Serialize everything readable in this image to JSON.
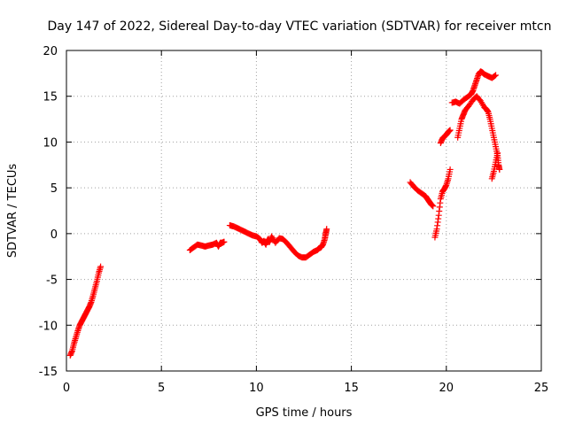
{
  "chart_data": {
    "type": "scatter",
    "title": "Day 147 of 2022, Sidereal Day-to-day VTEC variation (SDTVAR) for receiver mtcn",
    "xlabel": "GPS time / hours",
    "ylabel": "SDTVAR / TECUs",
    "xlim": [
      0,
      25
    ],
    "ylim": [
      -15,
      20
    ],
    "xticks": [
      0,
      5,
      10,
      15,
      20,
      25
    ],
    "yticks": [
      -15,
      -10,
      -5,
      0,
      5,
      10,
      15,
      20
    ],
    "xtick_labels": [
      "0",
      "5",
      "10",
      "15",
      "20",
      "25"
    ],
    "ytick_labels": [
      "-15",
      "-10",
      "-5",
      "0",
      "5",
      "10",
      "15",
      "20"
    ],
    "grid": true,
    "marker": "plus",
    "color": "#ff0000",
    "series": [
      {
        "name": "SDTVAR",
        "segments": [
          [
            [
              0.2,
              -13.3
            ],
            [
              0.3,
              -12.8
            ],
            [
              0.4,
              -12.0
            ],
            [
              0.5,
              -11.3
            ],
            [
              0.6,
              -10.6
            ],
            [
              0.7,
              -10.0
            ],
            [
              0.8,
              -9.6
            ],
            [
              0.9,
              -9.2
            ],
            [
              1.0,
              -8.8
            ],
            [
              1.1,
              -8.4
            ],
            [
              1.2,
              -8.0
            ],
            [
              1.3,
              -7.5
            ],
            [
              1.4,
              -6.8
            ],
            [
              1.5,
              -6.0
            ],
            [
              1.6,
              -5.2
            ],
            [
              1.7,
              -4.3
            ],
            [
              1.8,
              -3.6
            ]
          ],
          [
            [
              6.5,
              -1.8
            ],
            [
              6.7,
              -1.5
            ],
            [
              6.9,
              -1.2
            ],
            [
              7.1,
              -1.3
            ],
            [
              7.3,
              -1.4
            ],
            [
              7.5,
              -1.3
            ],
            [
              7.7,
              -1.2
            ],
            [
              7.9,
              -1.0
            ],
            [
              8.0,
              -1.4
            ],
            [
              8.1,
              -1.0
            ],
            [
              8.2,
              -1.0
            ],
            [
              8.3,
              -0.9
            ]
          ],
          [
            [
              8.6,
              0.9
            ],
            [
              8.8,
              0.8
            ],
            [
              9.0,
              0.6
            ],
            [
              9.2,
              0.4
            ],
            [
              9.4,
              0.2
            ],
            [
              9.6,
              0.0
            ],
            [
              9.8,
              -0.2
            ],
            [
              10.0,
              -0.3
            ],
            [
              10.2,
              -0.6
            ],
            [
              10.3,
              -1.0
            ],
            [
              10.4,
              -0.8
            ],
            [
              10.5,
              -1.2
            ],
            [
              10.6,
              -0.6
            ],
            [
              10.7,
              -0.9
            ],
            [
              10.8,
              -0.3
            ],
            [
              11.0,
              -1.0
            ],
            [
              11.2,
              -0.5
            ],
            [
              11.4,
              -0.6
            ],
            [
              11.6,
              -1.0
            ],
            [
              11.8,
              -1.5
            ],
            [
              12.0,
              -2.0
            ],
            [
              12.2,
              -2.4
            ],
            [
              12.4,
              -2.6
            ],
            [
              12.6,
              -2.6
            ],
            [
              12.8,
              -2.3
            ],
            [
              13.0,
              -2.0
            ],
            [
              13.2,
              -1.8
            ],
            [
              13.3,
              -1.6
            ],
            [
              13.4,
              -1.5
            ],
            [
              13.5,
              -1.2
            ],
            [
              13.6,
              -0.6
            ],
            [
              13.65,
              0.0
            ],
            [
              13.7,
              0.5
            ]
          ],
          [
            [
              18.1,
              5.6
            ],
            [
              18.3,
              5.1
            ],
            [
              18.5,
              4.7
            ],
            [
              18.7,
              4.4
            ],
            [
              18.9,
              4.1
            ],
            [
              19.0,
              3.8
            ],
            [
              19.1,
              3.5
            ],
            [
              19.2,
              3.2
            ],
            [
              19.3,
              3.0
            ]
          ],
          [
            [
              19.4,
              -0.4
            ],
            [
              19.5,
              0.5
            ],
            [
              19.6,
              2.0
            ],
            [
              19.7,
              3.8
            ],
            [
              19.8,
              4.6
            ],
            [
              19.9,
              4.9
            ],
            [
              20.0,
              5.3
            ],
            [
              20.1,
              6.0
            ],
            [
              20.2,
              7.0
            ]
          ],
          [
            [
              19.7,
              9.9
            ],
            [
              19.8,
              10.4
            ],
            [
              19.9,
              10.6
            ],
            [
              20.0,
              10.8
            ],
            [
              20.1,
              11.1
            ],
            [
              20.2,
              11.3
            ]
          ],
          [
            [
              20.3,
              14.3
            ],
            [
              20.5,
              14.4
            ],
            [
              20.7,
              14.2
            ],
            [
              20.9,
              14.6
            ],
            [
              21.1,
              14.9
            ],
            [
              21.3,
              15.2
            ],
            [
              21.4,
              15.6
            ],
            [
              21.5,
              16.2
            ],
            [
              21.6,
              16.8
            ],
            [
              21.7,
              17.4
            ],
            [
              21.8,
              17.7
            ],
            [
              21.9,
              17.6
            ],
            [
              22.0,
              17.4
            ],
            [
              22.2,
              17.2
            ],
            [
              22.4,
              17.0
            ],
            [
              22.6,
              17.3
            ]
          ],
          [
            [
              20.6,
              10.5
            ],
            [
              20.7,
              11.5
            ],
            [
              20.8,
              12.5
            ],
            [
              20.9,
              13.0
            ],
            [
              21.0,
              13.5
            ],
            [
              21.2,
              14.0
            ],
            [
              21.4,
              14.6
            ],
            [
              21.6,
              15.0
            ],
            [
              21.8,
              14.5
            ],
            [
              22.0,
              13.8
            ],
            [
              22.1,
              13.6
            ],
            [
              22.2,
              13.3
            ],
            [
              22.3,
              12.5
            ],
            [
              22.4,
              11.5
            ],
            [
              22.5,
              10.5
            ],
            [
              22.6,
              9.5
            ],
            [
              22.7,
              8.5
            ],
            [
              22.75,
              7.5
            ],
            [
              22.8,
              7.0
            ]
          ],
          [
            [
              22.4,
              6.0
            ],
            [
              22.5,
              6.8
            ],
            [
              22.6,
              7.8
            ],
            [
              22.7,
              8.8
            ]
          ]
        ]
      }
    ]
  }
}
